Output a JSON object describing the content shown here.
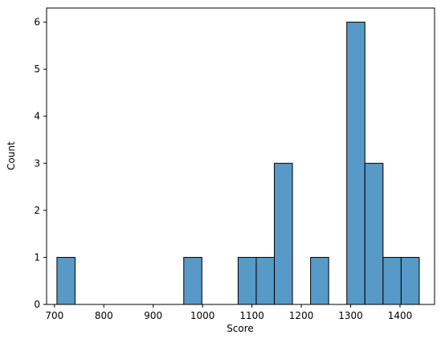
{
  "chart_data": {
    "type": "histogram",
    "x_label": "Score",
    "y_label": "Count",
    "bins": [
      705,
      741.7,
      778.4,
      815.1,
      851.8,
      888.5,
      925.2,
      961.9,
      998.6,
      1035.3,
      1072,
      1108.7,
      1145.4,
      1182.1,
      1218.8,
      1255.5,
      1292.2,
      1328.9,
      1365.6,
      1402.3,
      1439
    ],
    "values": [
      1,
      0,
      0,
      0,
      0,
      0,
      0,
      1,
      0,
      0,
      1,
      1,
      3,
      0,
      1,
      0,
      6,
      3,
      1,
      1
    ],
    "color": "#5799c7",
    "xlim": [
      684,
      1470
    ],
    "xticks": [
      700,
      800,
      900,
      1000,
      1100,
      1200,
      1300,
      1400
    ],
    "ylim": [
      0,
      6.3
    ],
    "yticks": [
      0,
      1,
      2,
      3,
      4,
      5,
      6
    ]
  }
}
